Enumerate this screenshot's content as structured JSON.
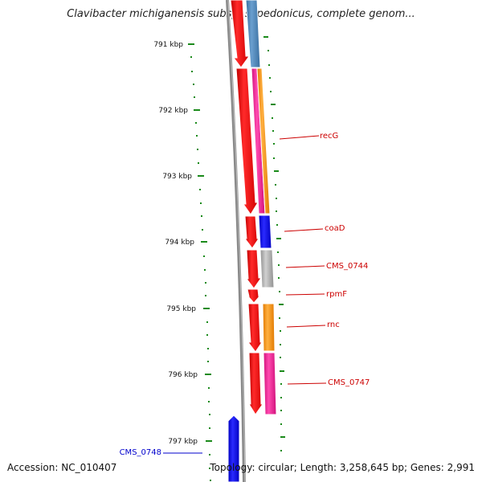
{
  "title": "Clavibacter michiganensis subsp. sepedonicus, complete genom...",
  "footer": {
    "accession": "Accession: NC_010407",
    "topology": "Topology: circular; Length: 3,258,645 bp; Genes: 2,991"
  },
  "colors": {
    "backbone": "#888888",
    "forward_red": "#ff0000",
    "tick": "#1a8a1a",
    "label_red": "#cc0000",
    "label_blue": "#0000cc",
    "steel_blue": "#4a7fb5",
    "orange": "#ff9a1a",
    "magenta": "#ff1a9a",
    "blue": "#0000ff",
    "grey": "#b0b0b0"
  },
  "ruler": {
    "unit": "kbp",
    "ticks": [
      {
        "label": "791 kbp"
      },
      {
        "label": "792 kbp"
      },
      {
        "label": "793 kbp"
      },
      {
        "label": "794 kbp"
      },
      {
        "label": "795 kbp"
      },
      {
        "label": "796 kbp"
      },
      {
        "label": "797 kbp"
      }
    ]
  },
  "gene_labels": [
    {
      "name": "recG",
      "color": "red"
    },
    {
      "name": "coaD",
      "color": "red"
    },
    {
      "name": "CMS_0744",
      "color": "red"
    },
    {
      "name": "rpmF",
      "color": "red"
    },
    {
      "name": "rnc",
      "color": "red"
    },
    {
      "name": "CMS_0747",
      "color": "red"
    },
    {
      "name": "CMS_0748",
      "color": "blue"
    }
  ]
}
